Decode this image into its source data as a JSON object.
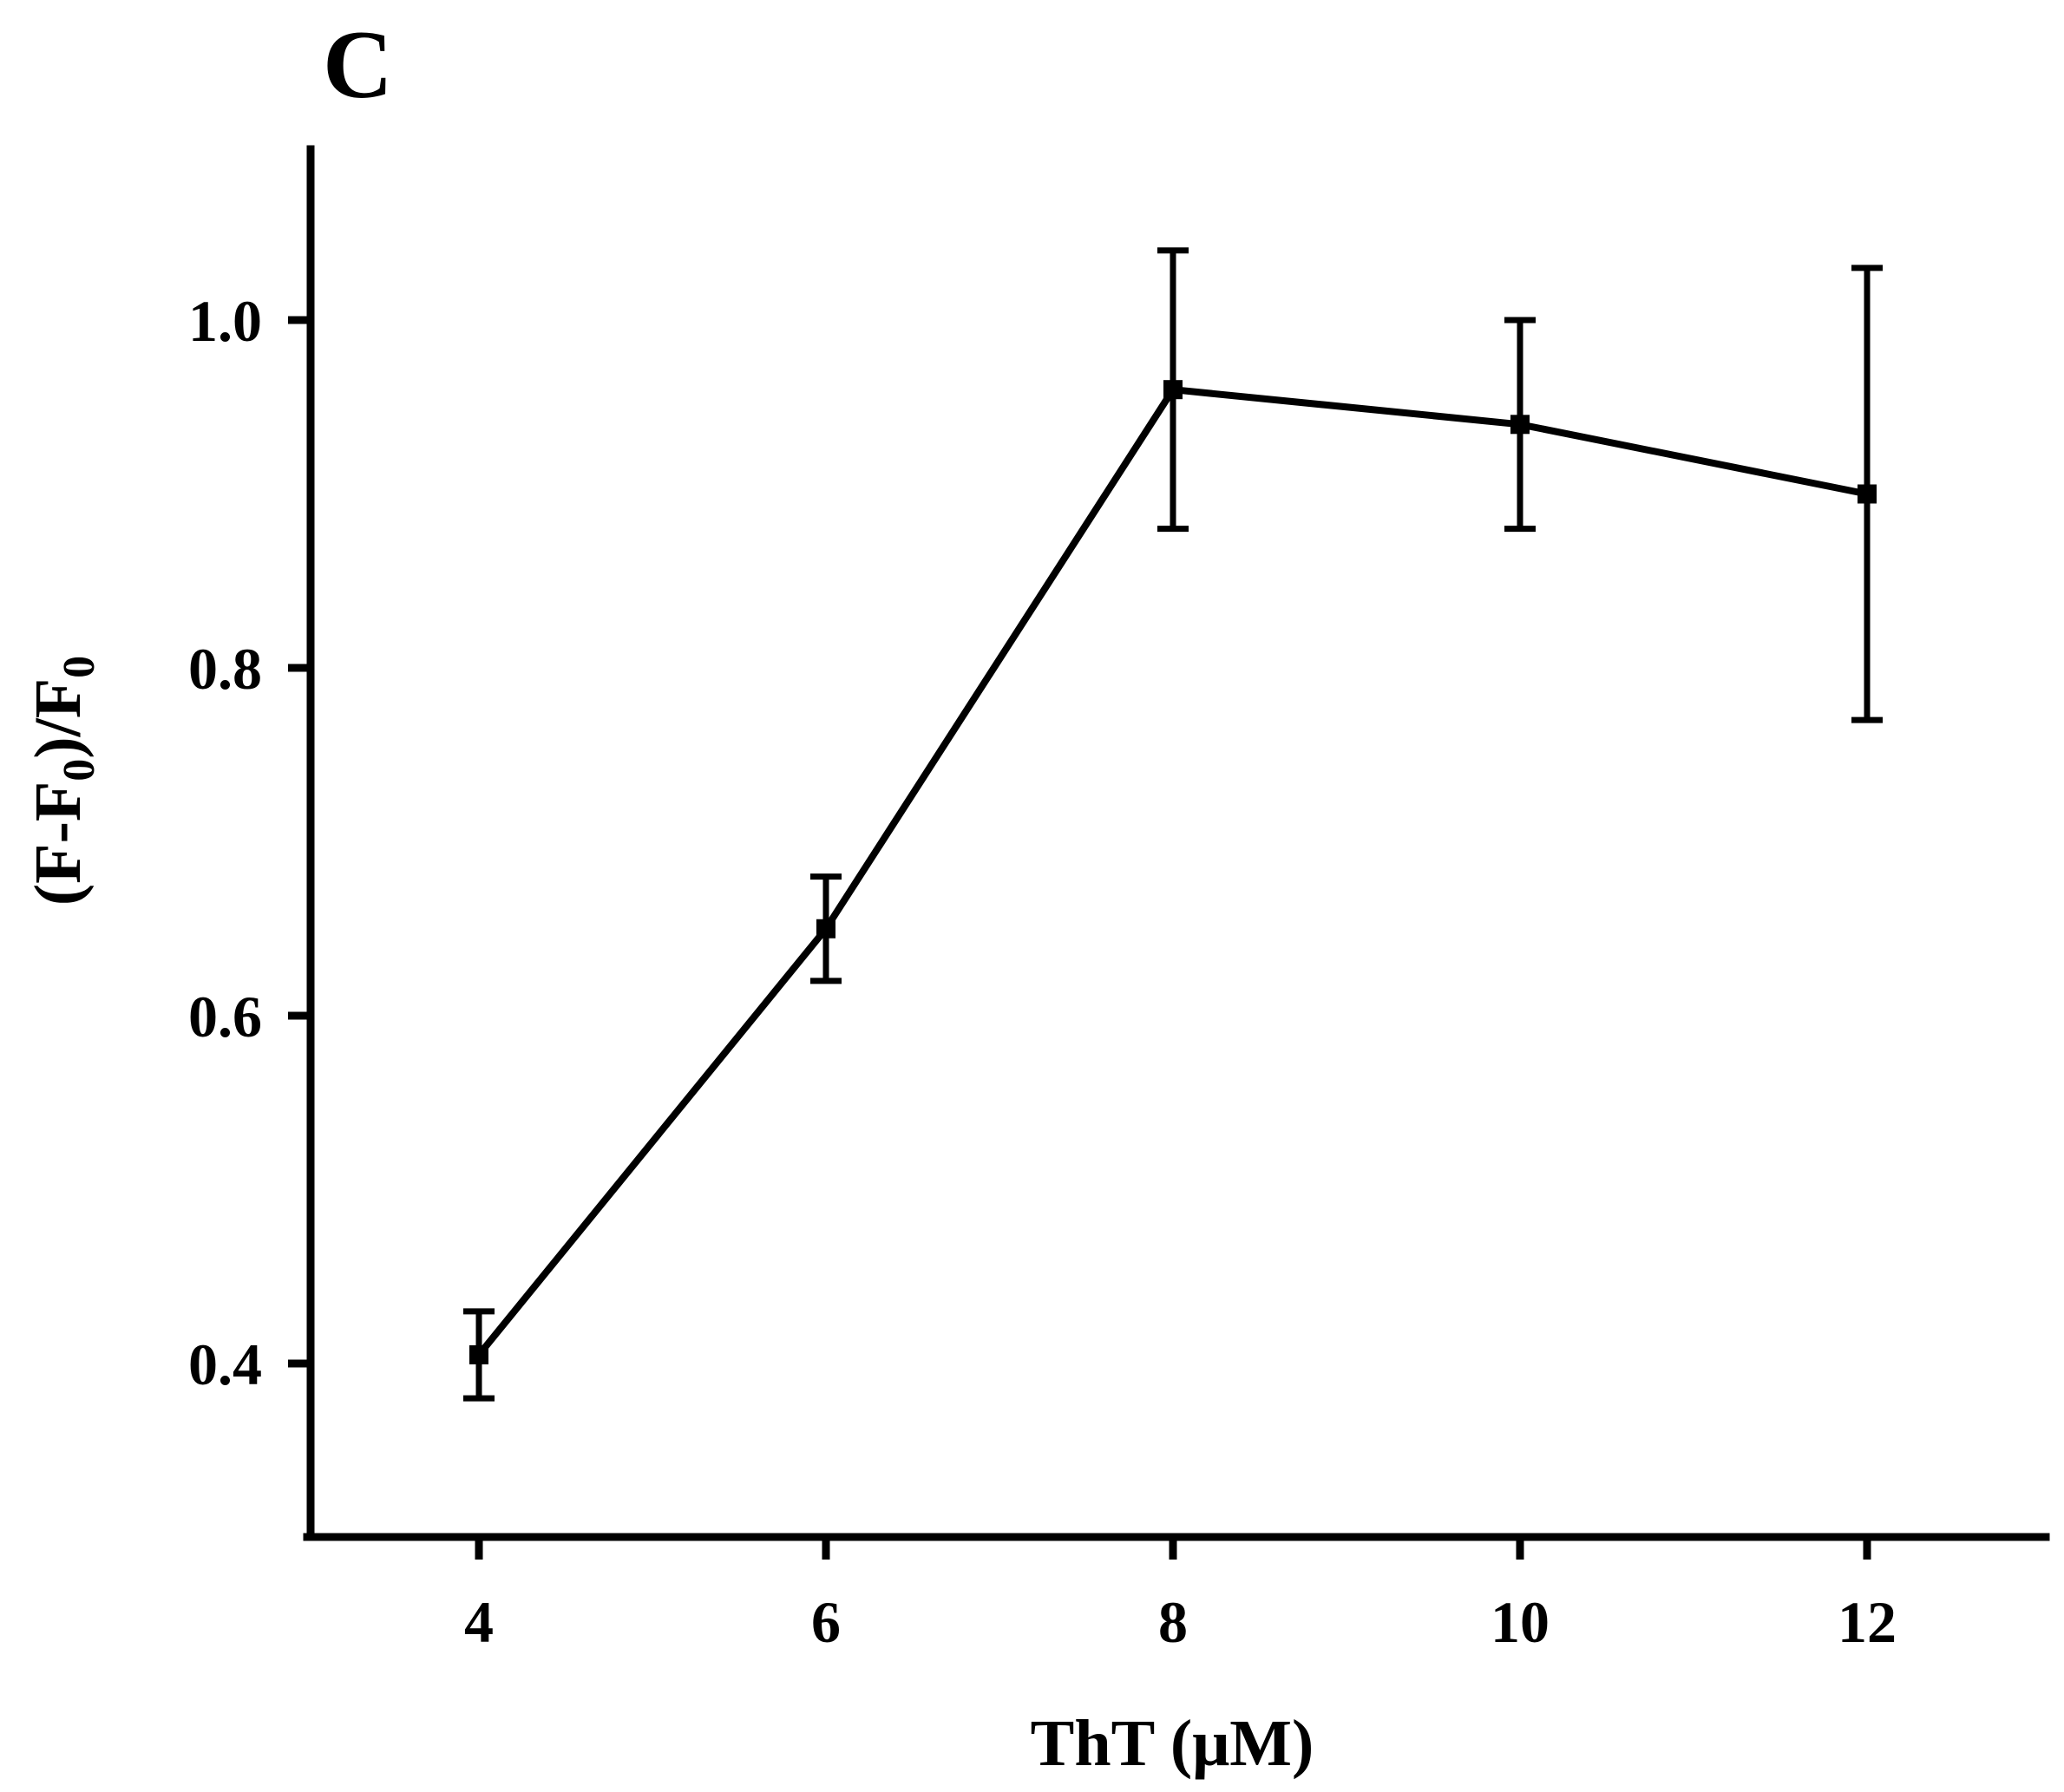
{
  "chart_data": {
    "type": "line",
    "panel_label": "C",
    "title": "",
    "xlabel": "ThT (μM)",
    "ylabel_main": "(F-F",
    "ylabel_sub1": "0",
    "ylabel_mid": ")/F",
    "ylabel_sub2": "0",
    "x_ticks": [
      "4",
      "6",
      "8",
      "10",
      "12"
    ],
    "y_ticks": [
      "0.4",
      "0.6",
      "0.8",
      "1.0"
    ],
    "xlim": [
      3,
      13
    ],
    "ylim": [
      0.3,
      1.1
    ],
    "grid": false,
    "legend": "none",
    "series": [
      {
        "name": "(F-F0)/F0",
        "x": [
          4,
          6,
          8,
          10,
          12
        ],
        "y": [
          0.405,
          0.65,
          0.96,
          0.94,
          0.9
        ],
        "err_low": [
          0.38,
          0.62,
          0.88,
          0.88,
          0.77
        ],
        "err_high": [
          0.43,
          0.68,
          1.04,
          1.0,
          1.03
        ]
      }
    ],
    "colors": {
      "line": "#000000",
      "background": "#ffffff"
    }
  }
}
